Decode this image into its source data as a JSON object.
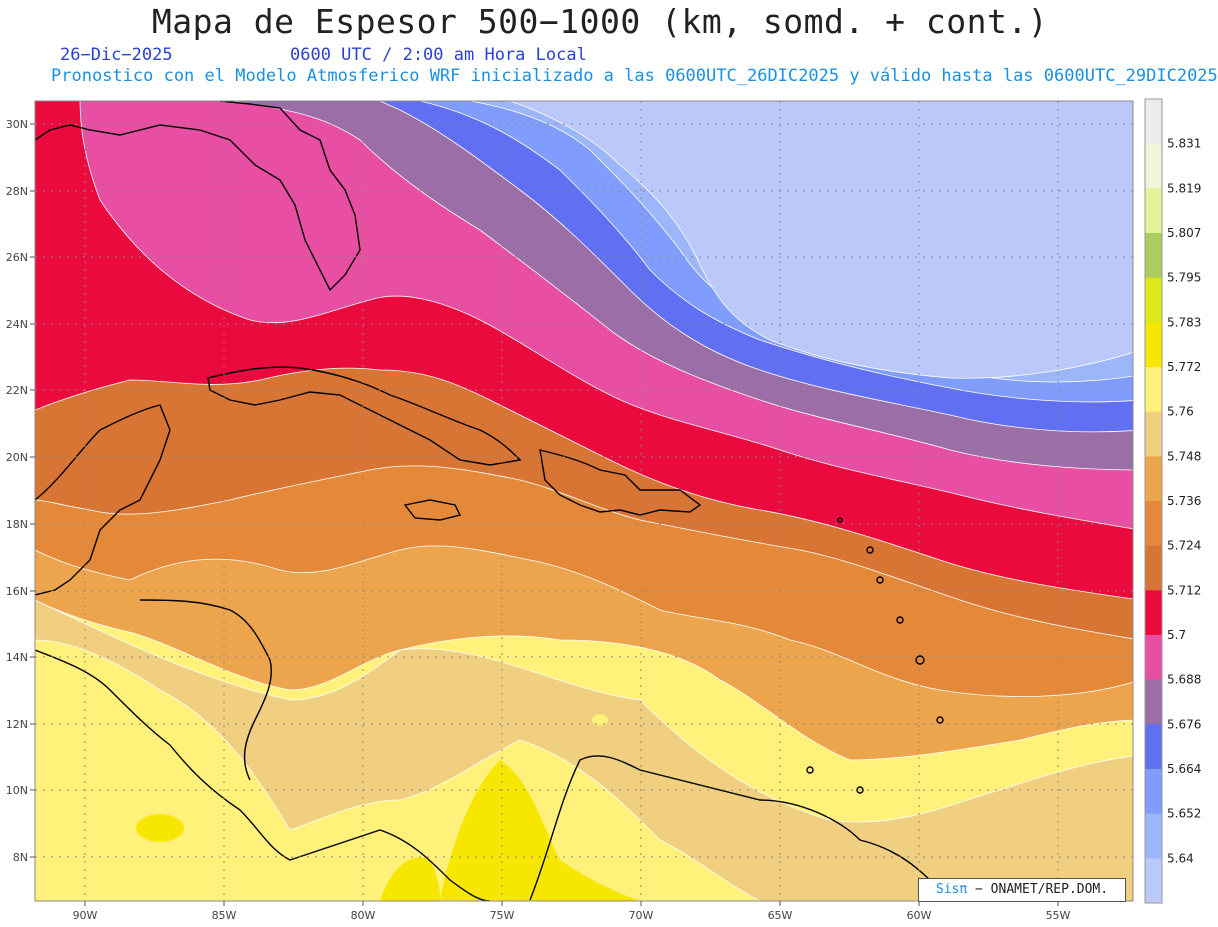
{
  "header": {
    "title": "Mapa de Espesor 500−1000 (km, somd. + cont.)",
    "date": "26−Dic−2025",
    "time": "0600 UTC / 2:00 am Hora Local",
    "description": "Pronostico con el Modelo Atmosferico WRF inicializado a las 0600UTC_26DIC2025 y válido hasta las  0600UTC_29DIC2025"
  },
  "axes": {
    "lon_labels": [
      "90W",
      "85W",
      "80W",
      "75W",
      "70W",
      "65W",
      "60W",
      "55W"
    ],
    "lat_labels": [
      "30N",
      "28N",
      "26N",
      "24N",
      "22N",
      "20N",
      "18N",
      "16N",
      "14N",
      "12N",
      "10N",
      "8N"
    ]
  },
  "colorbar": {
    "labels": [
      "5.831",
      "5.819",
      "5.807",
      "5.795",
      "5.783",
      "5.772",
      "5.76",
      "5.748",
      "5.736",
      "5.724",
      "5.712",
      "5.7",
      "5.688",
      "5.676",
      "5.664",
      "5.652",
      "5.64"
    ],
    "colors": [
      "#ececec",
      "#f2f5d6",
      "#e5f29a",
      "#a9cd5e",
      "#dde81a",
      "#f7e600",
      "#fff17a",
      "#f0cf81",
      "#eca54c",
      "#e4893a",
      "#d87535",
      "#ea0a3e",
      "#e84ea2",
      "#9c6ea7",
      "#6170f3",
      "#809cfc",
      "#9cb6fa",
      "#bac8fa"
    ]
  },
  "credit": {
    "brand": "Sisπ",
    "text": "− ONAMET/REP.DOM."
  }
}
